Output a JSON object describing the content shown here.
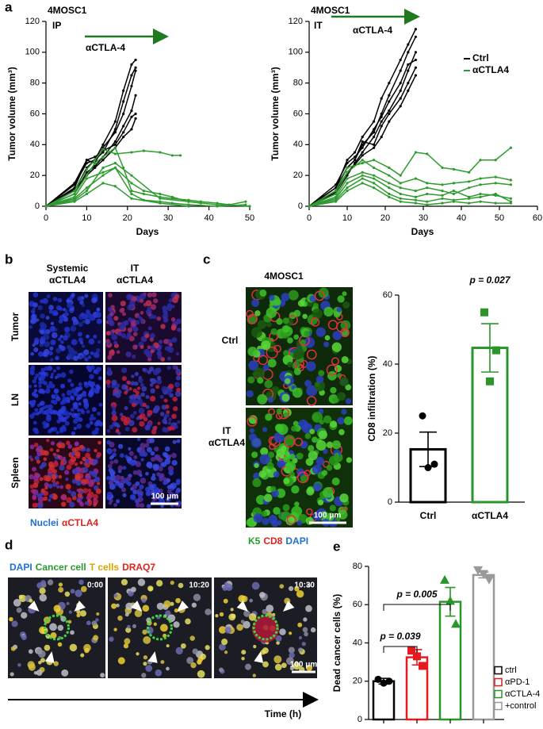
{
  "panel_labels": [
    "a",
    "b",
    "c",
    "d",
    "e"
  ],
  "chart_data": [
    {
      "type": "line",
      "title": "4MOSC1",
      "subtitle": "IP",
      "annotation": "αCTLA-4",
      "annotation_color": "#1f7a1f",
      "xlabel": "Days",
      "ylabel": "Tumor volume (mm³)",
      "xlim": [
        0,
        50
      ],
      "xticks": [
        0,
        10,
        20,
        30,
        40,
        50
      ],
      "ylim": [
        0,
        120
      ],
      "yticks": [
        0,
        20,
        40,
        60,
        80,
        100,
        120
      ],
      "legend": false,
      "series": [
        {
          "color": "#000000",
          "curves": [
            {
              "x": [
                0,
                7,
                10,
                12,
                14,
                17,
                19,
                21,
                22
              ],
              "values": [
                0,
                14,
                28,
                30,
                40,
                55,
                75,
                92,
                95
              ]
            },
            {
              "x": [
                0,
                7,
                10,
                12,
                14,
                17,
                19,
                21,
                22
              ],
              "values": [
                0,
                10,
                25,
                30,
                35,
                50,
                68,
                85,
                90
              ]
            },
            {
              "x": [
                0,
                7,
                10,
                12,
                14,
                17,
                19,
                21,
                22
              ],
              "values": [
                0,
                12,
                30,
                28,
                38,
                48,
                60,
                78,
                88
              ]
            },
            {
              "x": [
                0,
                7,
                10,
                12,
                14,
                17,
                19,
                21,
                22
              ],
              "values": [
                0,
                8,
                22,
                26,
                32,
                42,
                52,
                62,
                72
              ]
            },
            {
              "x": [
                0,
                7,
                10,
                12,
                14,
                17,
                19,
                21,
                22
              ],
              "values": [
                0,
                15,
                30,
                32,
                36,
                40,
                48,
                58,
                60
              ]
            },
            {
              "x": [
                0,
                7,
                10,
                12,
                14,
                17,
                19,
                21,
                22
              ],
              "values": [
                0,
                11,
                20,
                25,
                30,
                38,
                45,
                50,
                57
              ]
            }
          ]
        },
        {
          "color": "#2e9b2e",
          "curves": [
            {
              "x": [
                0,
                7,
                10,
                12,
                14,
                17,
                21,
                24,
                28,
                31,
                33
              ],
              "values": [
                0,
                10,
                24,
                30,
                37,
                34,
                35,
                36,
                35,
                33,
                33
              ]
            },
            {
              "x": [
                0,
                7,
                10,
                12,
                14,
                17,
                19,
                21,
                24,
                28,
                31,
                35,
                38,
                42,
                45,
                49
              ],
              "values": [
                0,
                8,
                20,
                28,
                32,
                38,
                25,
                10,
                8,
                6,
                5,
                4,
                3,
                2,
                1,
                3
              ]
            },
            {
              "x": [
                0,
                7,
                10,
                14,
                17,
                21,
                24,
                28,
                31,
                35,
                38
              ],
              "values": [
                0,
                6,
                18,
                22,
                25,
                15,
                10,
                8,
                6,
                3,
                2
              ]
            },
            {
              "x": [
                0,
                7,
                10,
                14,
                17,
                21,
                24,
                28,
                31,
                35,
                42,
                49
              ],
              "values": [
                0,
                5,
                12,
                20,
                25,
                8,
                4,
                3,
                2,
                1,
                0,
                1
              ]
            },
            {
              "x": [
                0,
                7,
                10,
                14,
                17,
                21,
                28,
                35,
                42,
                50
              ],
              "values": [
                0,
                4,
                10,
                25,
                28,
                20,
                5,
                3,
                1,
                0
              ]
            },
            {
              "x": [
                0,
                7,
                10,
                14,
                17,
                21,
                28,
                35
              ],
              "values": [
                0,
                3,
                8,
                15,
                13,
                5,
                2,
                0
              ]
            }
          ]
        }
      ]
    },
    {
      "type": "line",
      "title": "4MOSC1",
      "subtitle": "IT",
      "annotation": "αCTLA-4",
      "annotation_color": "#1f7a1f",
      "xlabel": "Days",
      "ylabel": "Tumor volume (mm³)",
      "xlim": [
        0,
        60
      ],
      "xticks": [
        0,
        10,
        20,
        30,
        40,
        50,
        60
      ],
      "ylim": [
        0,
        120
      ],
      "yticks": [
        0,
        20,
        40,
        60,
        80,
        100,
        120
      ],
      "legend": true,
      "legend_position": "upper right",
      "series": [
        {
          "name": "Ctrl",
          "color": "#000000",
          "curves": [
            {
              "x": [
                0,
                7,
                10,
                12,
                14,
                17,
                19,
                21,
                24,
                26,
                28
              ],
              "values": [
                0,
                12,
                30,
                35,
                45,
                55,
                70,
                80,
                95,
                105,
                115
              ]
            },
            {
              "x": [
                0,
                7,
                10,
                12,
                14,
                17,
                19,
                21,
                24,
                26,
                28
              ],
              "values": [
                0,
                10,
                25,
                30,
                40,
                48,
                60,
                72,
                88,
                100,
                110
              ]
            },
            {
              "x": [
                0,
                7,
                10,
                12,
                14,
                17,
                19,
                21,
                24,
                26,
                28
              ],
              "values": [
                0,
                14,
                28,
                32,
                38,
                50,
                58,
                68,
                80,
                92,
                95
              ]
            },
            {
              "x": [
                0,
                7,
                10,
                12,
                14,
                17,
                19,
                21,
                24,
                26,
                28
              ],
              "values": [
                0,
                8,
                20,
                28,
                35,
                45,
                55,
                62,
                75,
                88,
                100
              ]
            },
            {
              "x": [
                0,
                7,
                10,
                12,
                14,
                17,
                19,
                21,
                24,
                26,
                28
              ],
              "values": [
                0,
                12,
                25,
                30,
                42,
                40,
                52,
                60,
                70,
                80,
                90
              ]
            },
            {
              "x": [
                0,
                7,
                10,
                12,
                14,
                17,
                19,
                21,
                24,
                26,
                28
              ],
              "values": [
                0,
                9,
                22,
                27,
                33,
                38,
                45,
                55,
                65,
                75,
                85
              ]
            }
          ]
        },
        {
          "name": "αCTLA4",
          "color": "#2e9b2e",
          "curves": [
            {
              "x": [
                0,
                7,
                10,
                14,
                17,
                21,
                24,
                28,
                31,
                35,
                38,
                42,
                45,
                49,
                53
              ],
              "values": [
                0,
                10,
                25,
                28,
                30,
                25,
                20,
                35,
                34,
                25,
                24,
                22,
                30,
                30,
                38
              ]
            },
            {
              "x": [
                0,
                7,
                10,
                14,
                17,
                21,
                24,
                28,
                31,
                35,
                38,
                42,
                45,
                49,
                53
              ],
              "values": [
                0,
                8,
                22,
                30,
                25,
                20,
                15,
                18,
                15,
                14,
                15,
                16,
                18,
                19,
                17
              ]
            },
            {
              "x": [
                0,
                7,
                10,
                14,
                17,
                21,
                24,
                28,
                31,
                35,
                38,
                42,
                45,
                49,
                53
              ],
              "values": [
                0,
                6,
                18,
                22,
                20,
                15,
                12,
                10,
                12,
                10,
                8,
                12,
                14,
                15,
                14
              ]
            },
            {
              "x": [
                0,
                7,
                10,
                14,
                17,
                21,
                24,
                28,
                31,
                35,
                38,
                42,
                45,
                49,
                53
              ],
              "values": [
                0,
                5,
                15,
                20,
                18,
                12,
                8,
                6,
                8,
                7,
                10,
                6,
                8,
                7,
                5
              ]
            },
            {
              "x": [
                0,
                7,
                10,
                14,
                17,
                21,
                24,
                28,
                31,
                35,
                38,
                42,
                45,
                49,
                53
              ],
              "values": [
                0,
                4,
                12,
                18,
                15,
                8,
                5,
                4,
                3,
                5,
                4,
                5,
                6,
                8,
                3
              ]
            },
            {
              "x": [
                0,
                7,
                10,
                14,
                17,
                21,
                24,
                28,
                31,
                35,
                38,
                42,
                45,
                49,
                53
              ],
              "values": [
                0,
                3,
                10,
                15,
                12,
                6,
                3,
                2,
                1,
                2,
                3,
                2,
                3,
                2,
                2
              ]
            }
          ]
        }
      ]
    },
    {
      "type": "bar",
      "ylabel": "CD8 infiltration (%)",
      "categories": [
        "Ctrl",
        "αCTLA4"
      ],
      "values": [
        15.3,
        44.7
      ],
      "errors": [
        5,
        7
      ],
      "points": [
        [
          25,
          11,
          10
        ],
        [
          55,
          44,
          35
        ]
      ],
      "colors": [
        "#000000",
        "#2a962a"
      ],
      "markers": [
        "circle",
        "square"
      ],
      "category_labels": true,
      "legend": false,
      "ylim": [
        0,
        60
      ],
      "yticks": [
        0,
        20,
        40,
        60
      ],
      "annotations": [
        {
          "text": "p = 0.027",
          "color": "#000000"
        }
      ]
    },
    {
      "type": "bar",
      "ylabel": "Dead cancer cells (%)",
      "categories": [
        "ctrl",
        "αPD-1",
        "αCTLA-4",
        "+control"
      ],
      "values": [
        20,
        32.5,
        61.5,
        75.5
      ],
      "errors": [
        1.5,
        4,
        7.5,
        1.5
      ],
      "points": [
        [
          21,
          19,
          20
        ],
        [
          36,
          33,
          28
        ],
        [
          73,
          62,
          50
        ],
        [
          78,
          76,
          73
        ]
      ],
      "colors": [
        "#000000",
        "#e41a1c",
        "#2a962a",
        "#999999"
      ],
      "markers": [
        "circle",
        "square",
        "triangle",
        "triangle-down"
      ],
      "category_labels": false,
      "legend": true,
      "legend_position": "lower right",
      "ylim": [
        0,
        80
      ],
      "yticks": [
        0,
        20,
        40,
        60,
        80
      ],
      "annotations": [
        {
          "text": "p = 0.005",
          "color": "#2a962a"
        },
        {
          "text": "p = 0.039",
          "color": "#e41a1c"
        }
      ]
    }
  ],
  "panel_b": {
    "columns": [
      [
        "Systemic",
        "αCTLA4"
      ],
      [
        "IT",
        "αCTLA4"
      ]
    ],
    "rows": [
      "Tumor",
      "LN",
      "Spleen"
    ],
    "scale_bar": "100 μm",
    "legend": [
      {
        "text": "Nuclei",
        "color": "#1f6fd1"
      },
      {
        "text": "αCTLA4",
        "color": "#e0231c"
      }
    ]
  },
  "panel_c": {
    "title": "4MOSC1",
    "rows": [
      [
        "Ctrl"
      ],
      [
        "IT",
        "αCTLA4"
      ]
    ],
    "scale_bar": "100 μm",
    "legend": [
      {
        "text": "K5",
        "color": "#2a9a2a"
      },
      {
        "text": "CD8",
        "color": "#e0231c"
      },
      {
        "text": "DAPI",
        "color": "#1f6fd1"
      }
    ]
  },
  "panel_d": {
    "legend": [
      {
        "text": "DAPI",
        "color": "#1f6fd1"
      },
      {
        "text": "Cancer cell",
        "color": "#2a9a2a"
      },
      {
        "text": "T cells",
        "color": "#d9a300"
      },
      {
        "text": "DRAQ7",
        "color": "#e0231c"
      }
    ],
    "times": [
      "0:00",
      "10:20",
      "10:30"
    ],
    "scale_bar": "100 μm",
    "axis_label": "Time (h)"
  }
}
